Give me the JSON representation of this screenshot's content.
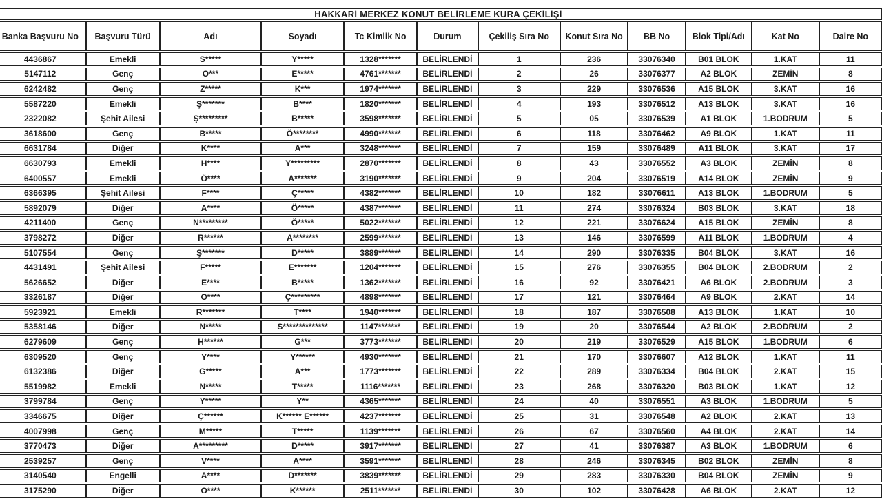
{
  "title": "HAKKARİ MERKEZ  KONUT BELİRLEME KURA ÇEKİLİŞİ",
  "table": {
    "columns": [
      "Banka Başvuru No",
      "Başvuru Türü",
      "Adı",
      "Soyadı",
      "Tc Kimlik No",
      "Durum",
      "Çekiliş Sıra No",
      "Konut Sıra No",
      "BB No",
      "Blok Tipi/Adı",
      "Kat No",
      "Daire No"
    ],
    "rows": [
      [
        "4436867",
        "Emekli",
        "S*****",
        "Y*****",
        "1328*******",
        "BELİRLENDİ",
        "1",
        "236",
        "33076340",
        "B01 BLOK",
        "1.KAT",
        "11"
      ],
      [
        "5147112",
        "Genç",
        "O***",
        "E*****",
        "4761*******",
        "BELİRLENDİ",
        "2",
        "26",
        "33076377",
        "A2 BLOK",
        "ZEMİN",
        "8"
      ],
      [
        "6242482",
        "Genç",
        "Z*****",
        "K***",
        "1974*******",
        "BELİRLENDİ",
        "3",
        "229",
        "33076536",
        "A15 BLOK",
        "3.KAT",
        "16"
      ],
      [
        "5587220",
        "Emekli",
        "Ş*******",
        "B****",
        "1820*******",
        "BELİRLENDİ",
        "4",
        "193",
        "33076512",
        "A13 BLOK",
        "3.KAT",
        "16"
      ],
      [
        "2322082",
        "Şehit Ailesi",
        "Ş*********",
        "B*****",
        "3598*******",
        "BELİRLENDİ",
        "5",
        "05",
        "33076539",
        "A1 BLOK",
        "1.BODRUM",
        "5"
      ],
      [
        "3618600",
        "Genç",
        "B*****",
        "Ö********",
        "4990*******",
        "BELİRLENDİ",
        "6",
        "118",
        "33076462",
        "A9 BLOK",
        "1.KAT",
        "11"
      ],
      [
        "6631784",
        "Diğer",
        "K****",
        "A***",
        "3248*******",
        "BELİRLENDİ",
        "7",
        "159",
        "33076489",
        "A11 BLOK",
        "3.KAT",
        "17"
      ],
      [
        "6630793",
        "Emekli",
        "H****",
        "Y*********",
        "2870*******",
        "BELİRLENDİ",
        "8",
        "43",
        "33076552",
        "A3 BLOK",
        "ZEMİN",
        "8"
      ],
      [
        "6400557",
        "Emekli",
        "Ö****",
        "A*******",
        "3190*******",
        "BELİRLENDİ",
        "9",
        "204",
        "33076519",
        "A14 BLOK",
        "ZEMİN",
        "9"
      ],
      [
        "6366395",
        "Şehit Ailesi",
        "F****",
        "Ç*****",
        "4382*******",
        "BELİRLENDİ",
        "10",
        "182",
        "33076611",
        "A13 BLOK",
        "1.BODRUM",
        "5"
      ],
      [
        "5892079",
        "Diğer",
        "A****",
        "Ö*****",
        "4387*******",
        "BELİRLENDİ",
        "11",
        "274",
        "33076324",
        "B03 BLOK",
        "3.KAT",
        "18"
      ],
      [
        "4211400",
        "Genç",
        "N*********",
        "Ö*****",
        "5022*******",
        "BELİRLENDİ",
        "12",
        "221",
        "33076624",
        "A15 BLOK",
        "ZEMİN",
        "8"
      ],
      [
        "3798272",
        "Diğer",
        "R******",
        "A********",
        "2599*******",
        "BELİRLENDİ",
        "13",
        "146",
        "33076599",
        "A11 BLOK",
        "1.BODRUM",
        "4"
      ],
      [
        "5107554",
        "Genç",
        "Ş*******",
        "D*****",
        "3889*******",
        "BELİRLENDİ",
        "14",
        "290",
        "33076335",
        "B04 BLOK",
        "3.KAT",
        "16"
      ],
      [
        "4431491",
        "Şehit Ailesi",
        "F*****",
        "E*******",
        "1204*******",
        "BELİRLENDİ",
        "15",
        "276",
        "33076355",
        "B04 BLOK",
        "2.BODRUM",
        "2"
      ],
      [
        "5626652",
        "Diğer",
        "E****",
        "B*****",
        "1362*******",
        "BELİRLENDİ",
        "16",
        "92",
        "33076421",
        "A6 BLOK",
        "2.BODRUM",
        "3"
      ],
      [
        "3326187",
        "Diğer",
        "O****",
        "Ç*********",
        "4898*******",
        "BELİRLENDİ",
        "17",
        "121",
        "33076464",
        "A9 BLOK",
        "2.KAT",
        "14"
      ],
      [
        "5923921",
        "Emekli",
        "R*******",
        "T****",
        "1940*******",
        "BELİRLENDİ",
        "18",
        "187",
        "33076508",
        "A13 BLOK",
        "1.KAT",
        "10"
      ],
      [
        "5358146",
        "Diğer",
        "N*****",
        "S**************",
        "1147*******",
        "BELİRLENDİ",
        "19",
        "20",
        "33076544",
        "A2 BLOK",
        "2.BODRUM",
        "2"
      ],
      [
        "6279609",
        "Genç",
        "H******",
        "G***",
        "3773*******",
        "BELİRLENDİ",
        "20",
        "219",
        "33076529",
        "A15 BLOK",
        "1.BODRUM",
        "6"
      ],
      [
        "6309520",
        "Genç",
        "Y****",
        "Y******",
        "4930*******",
        "BELİRLENDİ",
        "21",
        "170",
        "33076607",
        "A12 BLOK",
        "1.KAT",
        "11"
      ],
      [
        "6132386",
        "Diğer",
        "G*****",
        "A***",
        "1773*******",
        "BELİRLENDİ",
        "22",
        "289",
        "33076334",
        "B04 BLOK",
        "2.KAT",
        "15"
      ],
      [
        "5519982",
        "Emekli",
        "N*****",
        "T*****",
        "1116*******",
        "BELİRLENDİ",
        "23",
        "268",
        "33076320",
        "B03 BLOK",
        "1.KAT",
        "12"
      ],
      [
        "3799784",
        "Genç",
        "Y*****",
        "Y**",
        "4365*******",
        "BELİRLENDİ",
        "24",
        "40",
        "33076551",
        "A3 BLOK",
        "1.BODRUM",
        "5"
      ],
      [
        "3346675",
        "Diğer",
        "Ç******",
        "K****** E******",
        "4237*******",
        "BELİRLENDİ",
        "25",
        "31",
        "33076548",
        "A2 BLOK",
        "2.KAT",
        "13"
      ],
      [
        "4007998",
        "Genç",
        "M*****",
        "T*****",
        "1139*******",
        "BELİRLENDİ",
        "26",
        "67",
        "33076560",
        "A4 BLOK",
        "2.KAT",
        "14"
      ],
      [
        "3770473",
        "Diğer",
        "A*********",
        "D*****",
        "3917*******",
        "BELİRLENDİ",
        "27",
        "41",
        "33076387",
        "A3 BLOK",
        "1.BODRUM",
        "6"
      ],
      [
        "2539257",
        "Genç",
        "V****",
        "A****",
        "3591*******",
        "BELİRLENDİ",
        "28",
        "246",
        "33076345",
        "B02 BLOK",
        "ZEMİN",
        "8"
      ],
      [
        "3140540",
        "Engelli",
        "A****",
        "D*******",
        "3839*******",
        "BELİRLENDİ",
        "29",
        "283",
        "33076330",
        "B04 BLOK",
        "ZEMİN",
        "9"
      ],
      [
        "3175290",
        "Diğer",
        "O****",
        "K******",
        "2511*******",
        "BELİRLENDİ",
        "30",
        "102",
        "33076428",
        "A6 BLOK",
        "2.KAT",
        "12"
      ]
    ]
  }
}
